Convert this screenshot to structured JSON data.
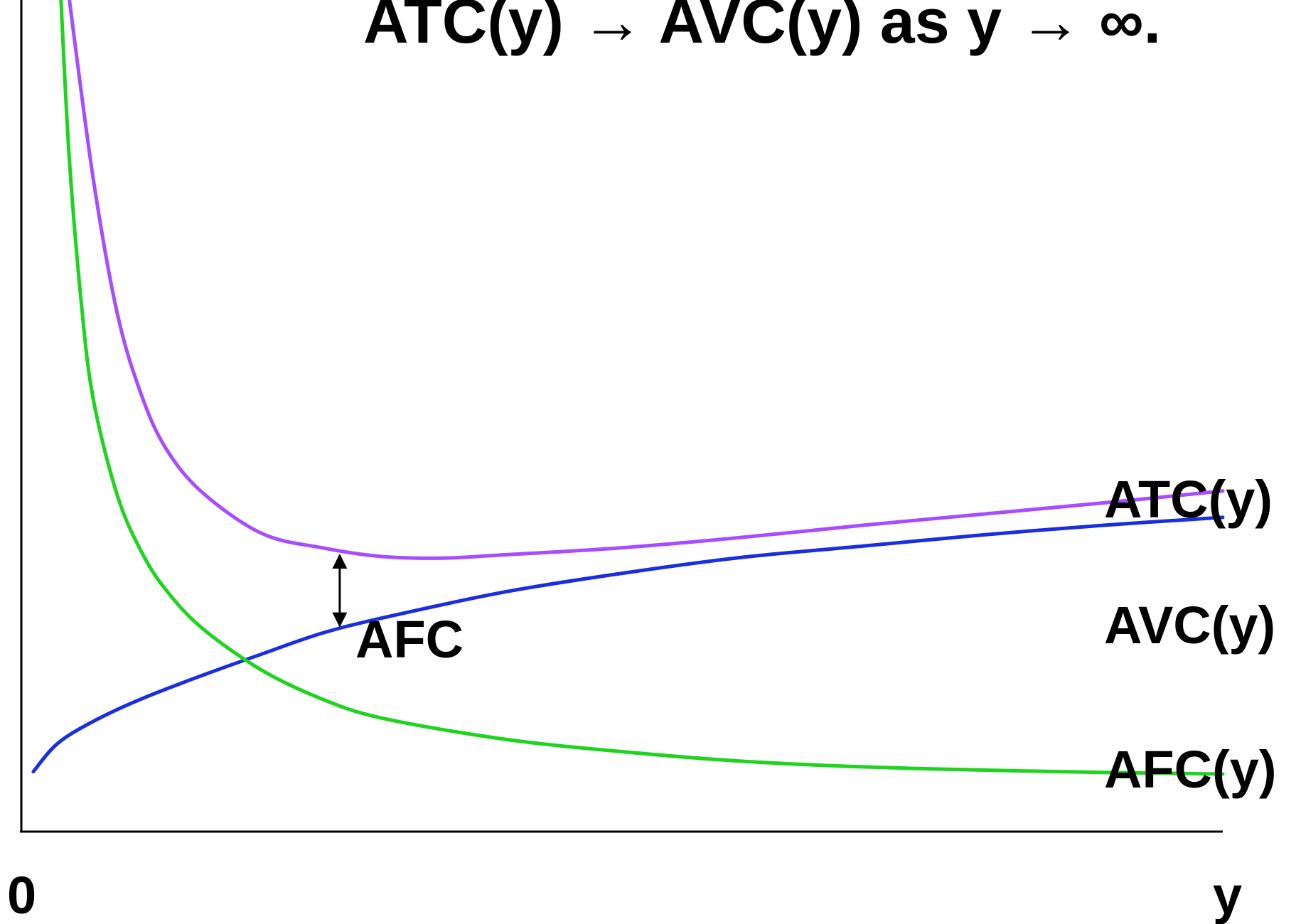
{
  "chart_data": {
    "type": "line",
    "title": "ATC(y) → AVC(y) as y → ∞.",
    "xlabel": "y",
    "ylabel": "",
    "origin_label": "0",
    "grid": false,
    "xlim": [
      0,
      100
    ],
    "ylim": [
      0,
      100
    ],
    "series": [
      {
        "name": "ATC(y)",
        "color": "#a64dff",
        "x": [
          4,
          6,
          8,
          10,
          12,
          15,
          20,
          25,
          30,
          35,
          40,
          50,
          60,
          70,
          80,
          90,
          100
        ],
        "y": [
          100,
          77.5,
          60.7,
          50.6,
          44,
          38.5,
          33.3,
          31.5,
          30.4,
          30.2,
          30.6,
          31.5,
          32.8,
          34.3,
          35.7,
          37.1,
          38.6
        ]
      },
      {
        "name": "AVC(y)",
        "color": "#1a2ee0",
        "x": [
          1,
          3,
          6,
          10,
          15,
          20,
          25,
          30,
          40,
          50,
          60,
          70,
          80,
          90,
          100
        ],
        "y": [
          3.5,
          7,
          9.8,
          12.6,
          15.5,
          18.2,
          20.8,
          22.7,
          25.9,
          28.3,
          30.3,
          31.7,
          33.1,
          34.3,
          35.3
        ]
      },
      {
        "name": "AFC(y)",
        "color": "#1fd41f",
        "x": [
          3.3,
          4,
          5,
          6,
          8,
          10,
          12,
          15,
          20,
          25,
          30,
          40,
          50,
          60,
          70,
          80,
          90,
          100
        ],
        "y": [
          100,
          80,
          62,
          50,
          38,
          31,
          26.3,
          21.5,
          16.2,
          12.6,
          10.2,
          7.6,
          6,
          4.8,
          4.1,
          3.7,
          3.4,
          3.2
        ]
      }
    ],
    "annotation": {
      "text": "AFC",
      "x": 26.5,
      "y_from": 21.2,
      "y_to": 31.1
    }
  }
}
